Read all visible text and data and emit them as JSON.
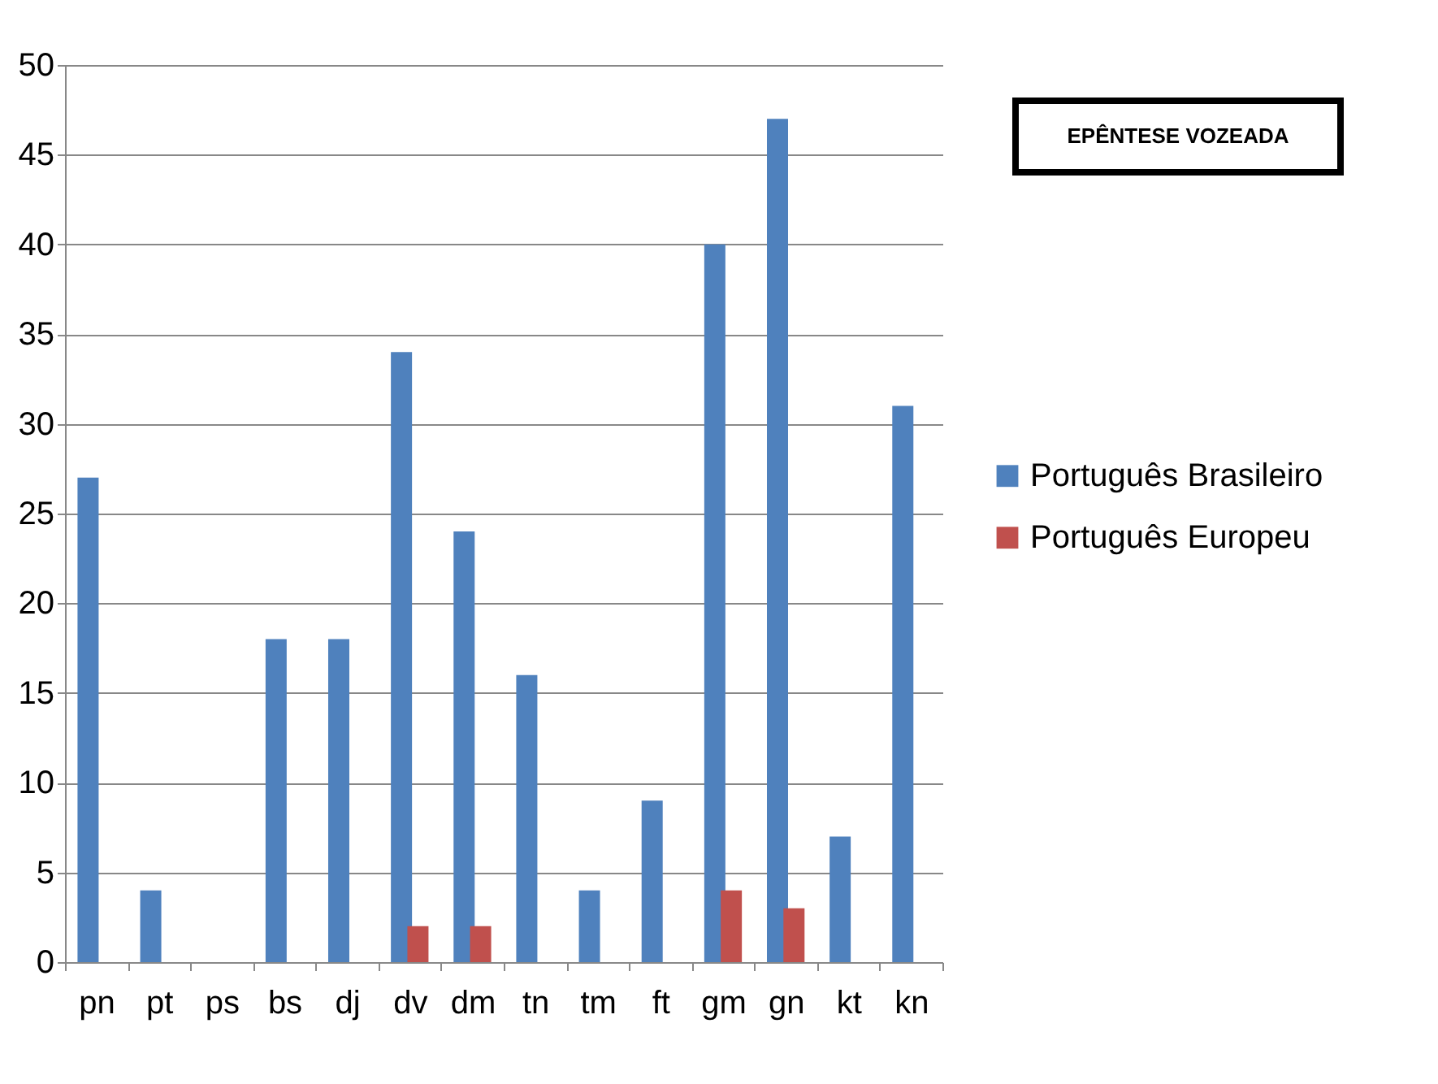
{
  "chart_data": {
    "type": "bar",
    "title": "EPÊNTESE VOZEADA",
    "categories": [
      "pn",
      "pt",
      "ps",
      "bs",
      "dj",
      "dv",
      "dm",
      "tn",
      "tm",
      "ft",
      "gm",
      "gn",
      "kt",
      "kn"
    ],
    "series": [
      {
        "name": "Português Brasileiro",
        "color": "#4f81bd",
        "values": [
          27,
          4,
          null,
          18,
          18,
          34,
          24,
          16,
          4,
          9,
          40,
          47,
          7,
          31
        ]
      },
      {
        "name": "Português Europeu",
        "color": "#c0504d",
        "values": [
          null,
          null,
          null,
          null,
          null,
          2,
          2,
          null,
          null,
          null,
          4,
          3,
          null,
          null
        ]
      }
    ],
    "ylim": [
      0,
      50
    ],
    "yticks": [
      0,
      5,
      10,
      15,
      20,
      25,
      30,
      35,
      40,
      45,
      50
    ],
    "grid": "y",
    "legend": "right"
  }
}
